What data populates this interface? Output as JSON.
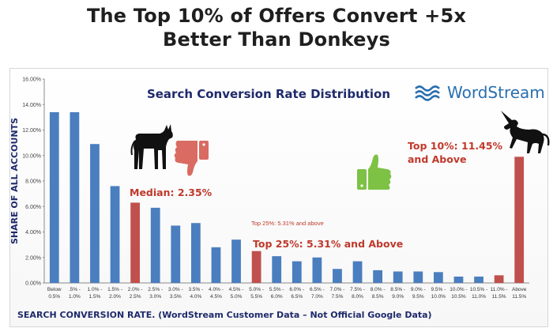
{
  "header": {
    "line1": "The Top 10% of Offers Convert +5x",
    "line2": "Better Than Donkeys"
  },
  "brand": {
    "name": "WordStream",
    "color": "#2a6fb0"
  },
  "icons": [
    "donkey-icon",
    "thumbs-down-icon",
    "thumbs-up-icon",
    "unicorn-icon",
    "wordstream-logo-icon"
  ],
  "colors": {
    "bar": "#4a7ebf",
    "highlight": "#c0504d",
    "thumb_down": "#d96b62",
    "thumb_up": "#7ec245",
    "title": "#1e2a6b"
  },
  "annotations": {
    "median": "Median: 2.35%",
    "top25_small": "Top 25%: 5.31% and above",
    "top25_big": "Top 25%: 5.31% and Above",
    "top10_line1": "Top 10%: 11.45%",
    "top10_line2": "and Above"
  },
  "chart_data": {
    "type": "bar",
    "title": "Search Conversion Rate Distribution",
    "xlabel": "SEARCH CONVERSION RATE.  (WordStream Customer Data – Not Official Google Data)",
    "ylabel": "SHARE OF ALL ACCOUNTS",
    "ylim": [
      0,
      16
    ],
    "yticks": [
      "0.00%",
      "2.00%",
      "4.00%",
      "6.00%",
      "8.00%",
      "10.00%",
      "12.00%",
      "14.00%",
      "16.00%"
    ],
    "grid": false,
    "categories": [
      [
        "Below",
        "0.5%"
      ],
      [
        ".5% -",
        "1.0%"
      ],
      [
        "1.0% -",
        "1.5%"
      ],
      [
        "1.5% -",
        "2.0%"
      ],
      [
        "2.0% -",
        "2.5%"
      ],
      [
        "2.5% -",
        "3.0%"
      ],
      [
        "3.0% -",
        "3.5%"
      ],
      [
        "3.5% -",
        "4.0%"
      ],
      [
        "4.0% -",
        "4.5%"
      ],
      [
        "4.5% -",
        "5.0%"
      ],
      [
        "5.0% -",
        "5.5%"
      ],
      [
        "5.5% -",
        "6.0%"
      ],
      [
        "6.0% -",
        "6.5%"
      ],
      [
        "6.5% -",
        "7.0%"
      ],
      [
        "7.0% -",
        "7.5%"
      ],
      [
        "7.5% -",
        "8.0%"
      ],
      [
        "8.0% -",
        "8.5%"
      ],
      [
        "8.5% -",
        "9.0%"
      ],
      [
        "9.0% -",
        "9.5%"
      ],
      [
        "9.5% -",
        "10.0%"
      ],
      [
        "10.0% -",
        "10.5%"
      ],
      [
        "10.5% -",
        "11.0%"
      ],
      [
        "11.0% -",
        "11.5%"
      ],
      [
        "Above",
        "11.5%"
      ]
    ],
    "values": [
      13.4,
      13.4,
      10.9,
      7.6,
      6.3,
      5.9,
      4.5,
      4.7,
      2.8,
      3.4,
      2.5,
      2.1,
      1.7,
      2.0,
      1.1,
      1.7,
      1.0,
      0.9,
      0.9,
      0.85,
      0.5,
      0.5,
      0.6,
      9.9
    ],
    "highlighted": [
      4,
      10,
      22,
      23
    ]
  }
}
